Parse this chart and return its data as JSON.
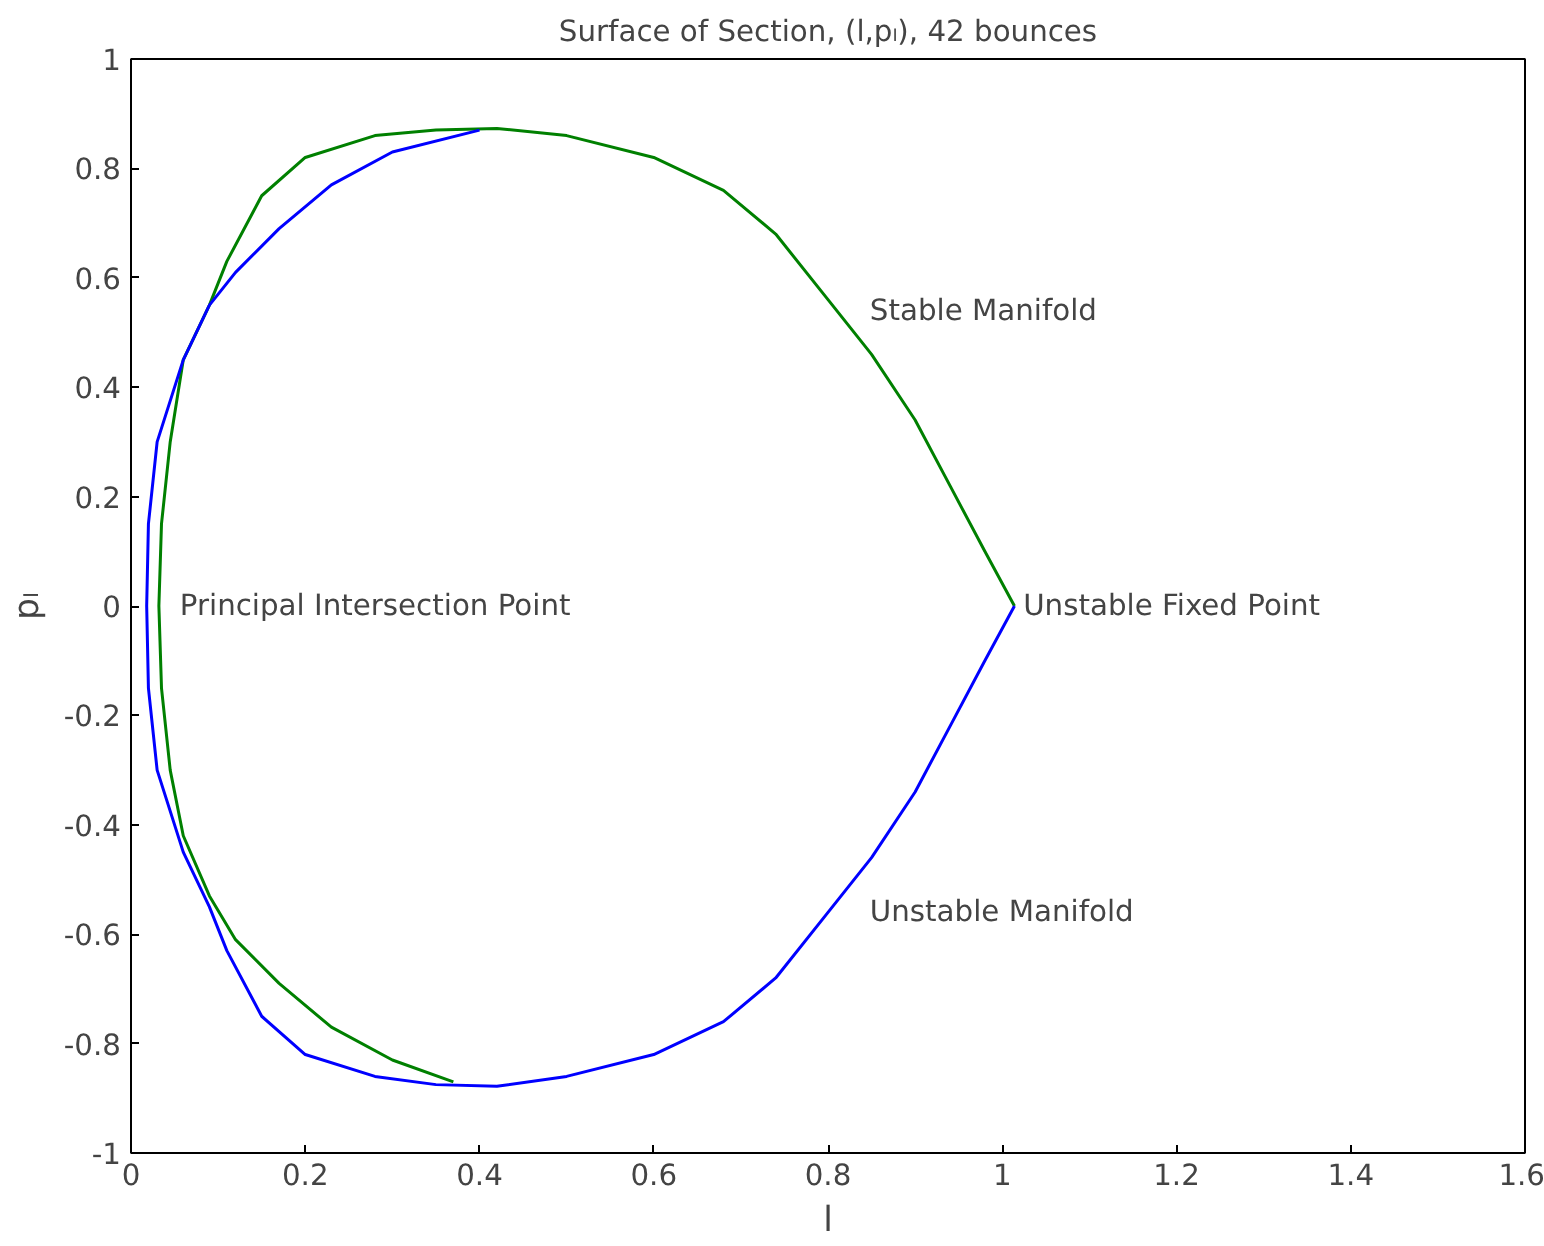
{
  "chart_data": {
    "type": "line",
    "title": "Surface of Section, (l,pₗ), 42 bounces",
    "xlabel": "l",
    "ylabel": "pₗ",
    "xlim": [
      0,
      1.6
    ],
    "xticks": [
      0,
      0.2,
      0.4,
      0.6,
      0.8,
      1,
      1.2,
      1.4,
      1.6
    ],
    "ylim": [
      -1,
      1
    ],
    "yticks": [
      -1,
      -0.8,
      -0.6,
      -0.4,
      -0.2,
      0,
      0.2,
      0.4,
      0.6,
      0.8,
      1
    ],
    "grid": false,
    "marker": "none",
    "line_style": "solid",
    "series": [
      {
        "color": "#008000",
        "x": [
          1.014,
          0.98,
          0.94,
          0.9,
          0.85,
          0.8,
          0.74,
          0.68,
          0.6,
          0.5,
          0.42,
          0.35,
          0.28,
          0.2,
          0.15,
          0.11,
          0.09,
          0.06,
          0.045,
          0.035,
          0.032,
          0.035,
          0.045,
          0.06,
          0.09,
          0.12,
          0.17,
          0.23,
          0.3,
          0.37
        ],
        "values": [
          0,
          0.1,
          0.22,
          0.34,
          0.46,
          0.56,
          0.68,
          0.76,
          0.82,
          0.86,
          0.873,
          0.87,
          0.86,
          0.82,
          0.75,
          0.63,
          0.55,
          0.45,
          0.3,
          0.15,
          0,
          -0.15,
          -0.3,
          -0.42,
          -0.53,
          -0.61,
          -0.69,
          -0.77,
          -0.83,
          -0.87
        ]
      },
      {
        "color": "#0000ff",
        "x": [
          1.014,
          0.98,
          0.94,
          0.9,
          0.85,
          0.8,
          0.74,
          0.68,
          0.6,
          0.5,
          0.42,
          0.35,
          0.28,
          0.2,
          0.15,
          0.11,
          0.09,
          0.06,
          0.03,
          0.02,
          0.018,
          0.02,
          0.03,
          0.06,
          0.09,
          0.12,
          0.17,
          0.23,
          0.3,
          0.4
        ],
        "values": [
          0,
          -0.1,
          -0.22,
          -0.34,
          -0.46,
          -0.56,
          -0.68,
          -0.76,
          -0.82,
          -0.86,
          -0.878,
          -0.875,
          -0.86,
          -0.82,
          -0.75,
          -0.63,
          -0.55,
          -0.45,
          -0.3,
          -0.15,
          0,
          0.15,
          0.3,
          0.45,
          0.55,
          0.61,
          0.69,
          0.77,
          0.83,
          0.87
        ]
      }
    ],
    "annotations": [
      "Stable Manifold",
      "Unstable Manifold",
      "Principal Intersection Point",
      "Unstable Fixed Point"
    ]
  }
}
